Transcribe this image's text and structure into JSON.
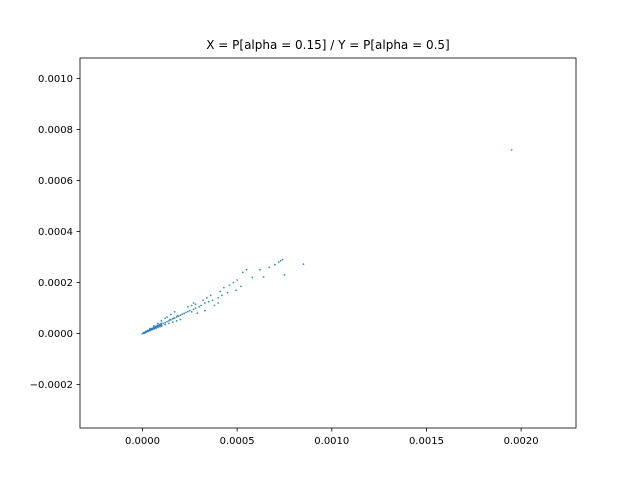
{
  "chart_data": {
    "type": "scatter",
    "title": "X = P[alpha = 0.15] / Y = P[alpha = 0.5]",
    "xlabel": "",
    "ylabel": "",
    "xlim": [
      -0.00033,
      0.00229
    ],
    "ylim": [
      -0.00037,
      0.00108
    ],
    "grid": false,
    "x_ticks": [
      "0.0000",
      "0.0005",
      "0.0010",
      "0.0015",
      "0.0020"
    ],
    "y_ticks": [
      "−0.0002",
      "0.0000",
      "0.0002",
      "0.0004",
      "0.0006",
      "0.0008",
      "0.0010"
    ],
    "x_tick_values": [
      0.0,
      0.0005,
      0.001,
      0.0015,
      0.002
    ],
    "y_tick_values": [
      -0.0002,
      0.0,
      0.0002,
      0.0004,
      0.0006,
      0.0008,
      0.001
    ],
    "marker_color": "#1f77b4",
    "series": [
      {
        "points": [
          [
            0.0,
            0.0
          ],
          [
            5e-06,
            2e-06
          ],
          [
            1e-05,
            4e-06
          ],
          [
            1.5e-05,
            5e-06
          ],
          [
            2e-05,
            7e-06
          ],
          [
            2.5e-05,
            9e-06
          ],
          [
            3e-05,
            1.1e-05
          ],
          [
            3.5e-05,
            1.2e-05
          ],
          [
            4e-05,
            1.4e-05
          ],
          [
            4.5e-05,
            1.6e-05
          ],
          [
            5e-05,
            1.8e-05
          ],
          [
            5.5e-05,
            2e-05
          ],
          [
            6e-05,
            2.1e-05
          ],
          [
            6.5e-05,
            2.3e-05
          ],
          [
            7e-05,
            2.5e-05
          ],
          [
            7.5e-05,
            2.7e-05
          ],
          [
            8e-05,
            2.9e-05
          ],
          [
            8.5e-05,
            3e-05
          ],
          [
            9e-05,
            3.2e-05
          ],
          [
            9.5e-05,
            3.4e-05
          ],
          [
            0.0001,
            3.6e-05
          ],
          [
            0.00011,
            4e-05
          ],
          [
            0.00012,
            4.3e-05
          ],
          [
            0.00013,
            4.7e-05
          ],
          [
            0.00014,
            5e-05
          ],
          [
            0.00015,
            5.4e-05
          ],
          [
            0.00016,
            5.8e-05
          ],
          [
            0.00017,
            6.1e-05
          ],
          [
            0.00018,
            6.5e-05
          ],
          [
            0.00019,
            6.8e-05
          ],
          [
            0.0002,
            7.2e-05
          ],
          [
            0.00021,
            7.6e-05
          ],
          [
            0.00022,
            7.9e-05
          ],
          [
            0.00023,
            8.3e-05
          ],
          [
            0.00024,
            8.6e-05
          ],
          [
            8e-06,
            4e-06
          ],
          [
            1.8e-05,
            8e-06
          ],
          [
            2.8e-05,
            1.2e-05
          ],
          [
            3.8e-05,
            1.6e-05
          ],
          [
            4.8e-05,
            2e-05
          ],
          [
            5.8e-05,
            2.4e-05
          ],
          [
            6.8e-05,
            2.8e-05
          ],
          [
            7.8e-05,
            3.2e-05
          ],
          [
            8.8e-05,
            3.6e-05
          ],
          [
            9.8e-05,
            4e-05
          ],
          [
            1.2e-05,
            2e-06
          ],
          [
            2.2e-05,
            6e-06
          ],
          [
            3.2e-05,
            9e-06
          ],
          [
            4.2e-05,
            1.2e-05
          ],
          [
            5.2e-05,
            1.5e-05
          ],
          [
            6.2e-05,
            1.8e-05
          ],
          [
            7.2e-05,
            2.1e-05
          ],
          [
            8.2e-05,
            2.4e-05
          ],
          [
            9.2e-05,
            2.7e-05
          ],
          [
            0.000102,
            3e-05
          ],
          [
            4e-05,
            2e-05
          ],
          [
            6e-05,
            3e-05
          ],
          [
            8e-05,
            4e-05
          ],
          [
            0.0001,
            5e-05
          ],
          [
            0.00012,
            6e-05
          ],
          [
            0.00013,
            6.5e-05
          ],
          [
            0.00015,
            7.5e-05
          ],
          [
            0.00017,
            8.5e-05
          ],
          [
            0.0001,
            3e-05
          ],
          [
            0.00012,
            3.5e-05
          ],
          [
            0.00014,
            4e-05
          ],
          [
            0.00016,
            4.5e-05
          ],
          [
            0.00018,
            5e-05
          ],
          [
            0.0002,
            5.5e-05
          ],
          [
            0.00025,
            9e-05
          ],
          [
            0.00026,
            8.5e-05
          ],
          [
            0.00027,
            9.5e-05
          ],
          [
            0.00028,
            0.0001
          ],
          [
            0.0003,
            0.000105
          ],
          [
            0.00031,
            0.00011
          ],
          [
            0.00033,
            0.00012
          ],
          [
            0.00035,
            0.000125
          ],
          [
            0.00037,
            0.00013
          ],
          [
            0.0004,
            0.00014
          ],
          [
            0.00042,
            0.00015
          ],
          [
            0.00045,
            0.00016
          ],
          [
            0.00024,
            0.000105
          ],
          [
            0.00026,
            0.00011
          ],
          [
            0.00028,
            0.000115
          ],
          [
            0.00027,
            0.00012
          ],
          [
            0.00032,
            0.00013
          ],
          [
            0.00034,
            0.00014
          ],
          [
            0.00036,
            0.00015
          ],
          [
            0.00041,
            0.000165
          ],
          [
            0.00043,
            0.00018
          ],
          [
            0.00029,
            8e-05
          ],
          [
            0.00033,
            9e-05
          ],
          [
            0.00038,
            0.00011
          ],
          [
            0.0004,
            0.00012
          ],
          [
            0.00046,
            0.00019
          ],
          [
            0.00048,
            0.0002
          ],
          [
            0.0005,
            0.00021
          ],
          [
            0.00053,
            0.00024
          ],
          [
            0.00055,
            0.00025
          ],
          [
            0.00058,
            0.00022
          ],
          [
            0.00062,
            0.00025
          ],
          [
            0.00064,
            0.000222
          ],
          [
            0.0007,
            0.00027
          ],
          [
            0.00072,
            0.00028
          ],
          [
            0.00073,
            0.000285
          ],
          [
            0.00074,
            0.00029
          ],
          [
            0.00075,
            0.00023
          ],
          [
            0.00067,
            0.00026
          ],
          [
            0.00085,
            0.000272
          ],
          [
            0.000495,
            0.00017
          ],
          [
            0.00052,
            0.000185
          ],
          [
            0.000145,
            5.5e-05
          ],
          [
            0.000165,
            6e-05
          ],
          [
            0.000185,
            7e-05
          ],
          [
            0.00195,
            0.00072
          ]
        ]
      }
    ]
  }
}
